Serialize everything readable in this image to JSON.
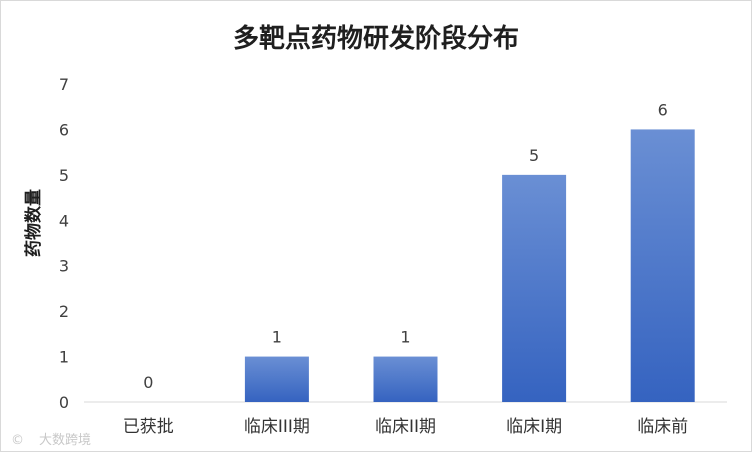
{
  "chart_data": {
    "type": "bar",
    "title": "多靶点药物研发阶段分布",
    "ylabel": "药物数量",
    "xlabel": "",
    "categories": [
      "已获批",
      "临床III期",
      "临床II期",
      "临床I期",
      "临床前"
    ],
    "values": [
      0,
      1,
      1,
      5,
      6
    ],
    "data_labels": [
      "0",
      "1",
      "1",
      "5",
      "6"
    ],
    "yticks": [
      "0",
      "1",
      "2",
      "3",
      "4",
      "5",
      "6",
      "7"
    ],
    "ylim": [
      0,
      7
    ],
    "grid": false,
    "legend": "none",
    "colors": {
      "bar_top": "#6a8fd4",
      "bar_bottom": "#3563c0"
    }
  },
  "watermark": {
    "symbol": "©",
    "text": "大数跨境"
  }
}
